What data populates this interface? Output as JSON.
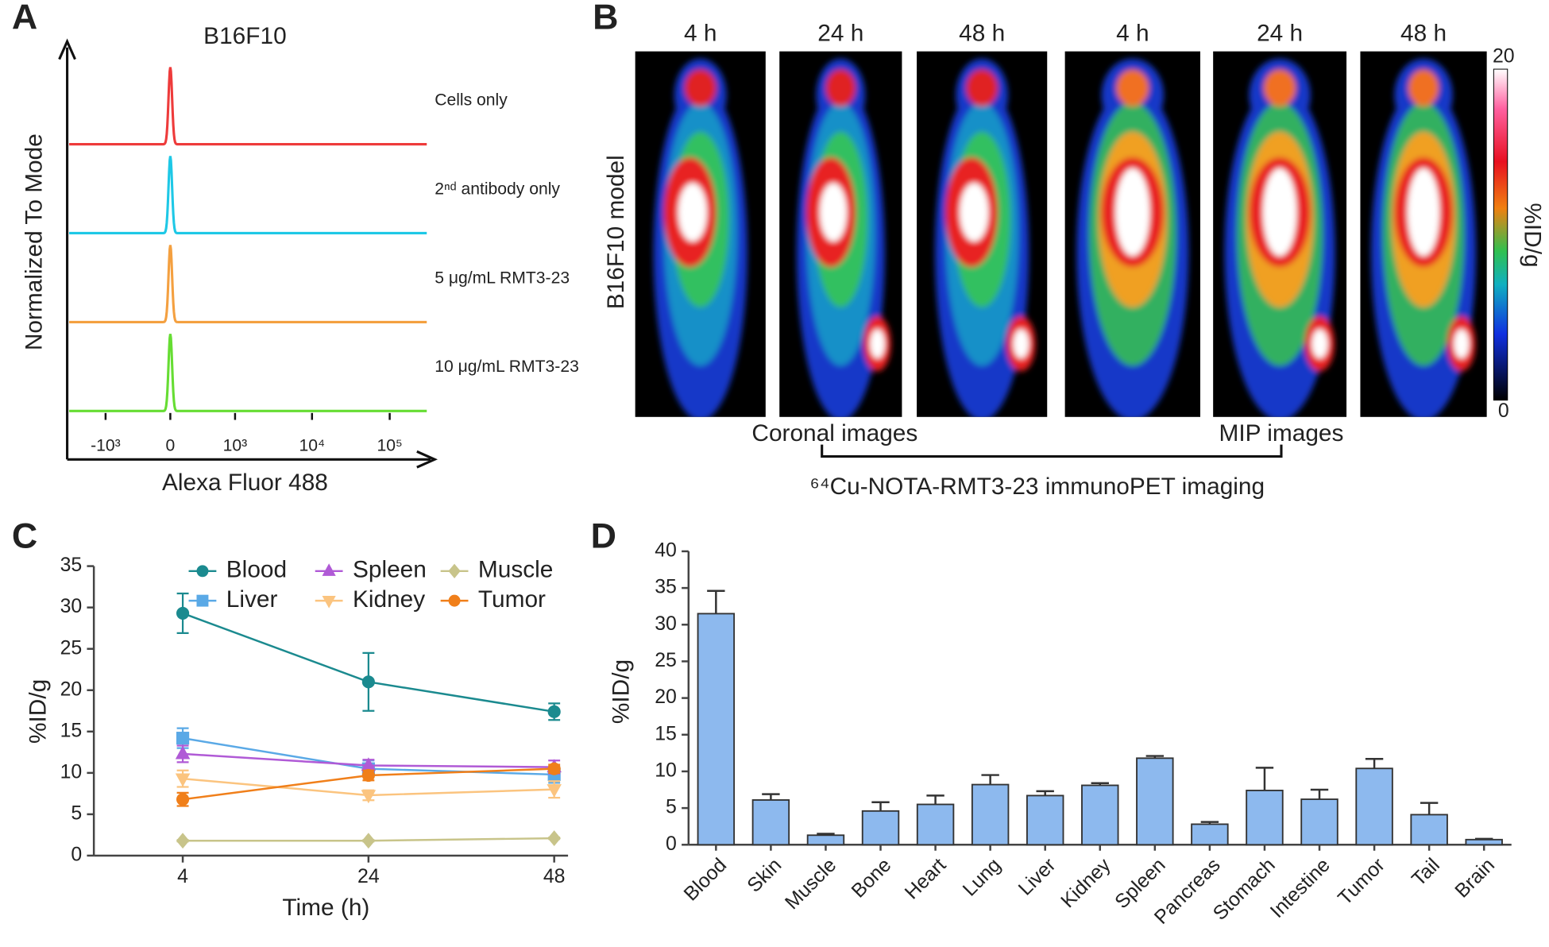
{
  "chart_data": [
    {
      "type": "flow_histogram",
      "panel": "A",
      "title": "B16F10",
      "xlabel": "Alexa Fluor 488",
      "ylabel": "Normalized To Mode",
      "xscale": "biexponential",
      "xlim": [
        -3000,
        300000
      ],
      "xticks": [
        {
          "value": -1000,
          "label": "-10³"
        },
        0,
        {
          "value": 1000,
          "label": "10³"
        },
        {
          "value": 10000,
          "label": "10⁴"
        },
        {
          "value": 100000,
          "label": "10⁵"
        }
      ],
      "series": [
        {
          "name": "Cells only",
          "color": "#ee3b3b"
        },
        {
          "name": "2ⁿᵈ antibody only",
          "color": "#1ec8e6"
        },
        {
          "name": "5 μg/mL RMT3-23",
          "color": "#f4a040"
        },
        {
          "name": "10 μg/mL RMT3-23",
          "color": "#66dd33"
        }
      ]
    },
    {
      "type": "pet_images",
      "panel": "B",
      "row_label": "B16F10 model",
      "columns": [
        "4 h",
        "24 h",
        "48 h",
        "4 h",
        "24 h",
        "48 h"
      ],
      "groups": [
        "Coronal images",
        "MIP images"
      ],
      "caption": "⁶⁴Cu-NOTA-RMT3-23 immunoPET imaging",
      "colorbar": {
        "label": "%ID/g",
        "lim": [
          0,
          20
        ],
        "ticks": [
          0,
          20
        ]
      }
    },
    {
      "type": "line",
      "panel": "C",
      "xlabel": "Time (h)",
      "ylabel": "%ID/g",
      "categories": [
        "4",
        "24",
        "48"
      ],
      "ylim": [
        0,
        35
      ],
      "yticks": [
        0,
        5,
        10,
        15,
        20,
        25,
        30,
        35
      ],
      "legend": "top",
      "series": [
        {
          "name": "Blood",
          "color": "#1b8a8f",
          "marker": "circle",
          "values": [
            29.3,
            21.0,
            17.4
          ],
          "errors": [
            2.4,
            3.5,
            1.0
          ]
        },
        {
          "name": "Liver",
          "color": "#5aa9e6",
          "marker": "square",
          "values": [
            14.2,
            10.5,
            9.8
          ],
          "errors": [
            1.2,
            1.0,
            1.0
          ]
        },
        {
          "name": "Spleen",
          "color": "#b05ad6",
          "marker": "triangle-up",
          "values": [
            12.3,
            10.9,
            10.7
          ],
          "errors": [
            1.0,
            0.7,
            0.8
          ]
        },
        {
          "name": "Kidney",
          "color": "#fbc47f",
          "marker": "triangle-down",
          "values": [
            9.3,
            7.3,
            8.0
          ],
          "errors": [
            1.0,
            0.6,
            1.0
          ]
        },
        {
          "name": "Muscle",
          "color": "#c8c48a",
          "marker": "diamond",
          "values": [
            1.8,
            1.8,
            2.1
          ],
          "errors": [
            0.1,
            0.1,
            0.1
          ]
        },
        {
          "name": "Tumor",
          "color": "#f07f1a",
          "marker": "circle",
          "values": [
            6.8,
            9.7,
            10.5
          ],
          "errors": [
            0.8,
            0.6,
            0.5
          ]
        }
      ]
    },
    {
      "type": "bar",
      "panel": "D",
      "ylabel": "%ID/g",
      "categories": [
        "Blood",
        "Skin",
        "Muscle",
        "Bone",
        "Heart",
        "Lung",
        "Liver",
        "Kidney",
        "Spleen",
        "Pancreas",
        "Stomach",
        "Intestine",
        "Tumor",
        "Tail",
        "Brain"
      ],
      "values": [
        31.5,
        6.1,
        1.3,
        4.6,
        5.5,
        8.2,
        6.7,
        8.1,
        11.8,
        2.8,
        7.4,
        6.2,
        10.4,
        4.1,
        0.7
      ],
      "errors": [
        3.1,
        0.8,
        0.2,
        1.2,
        1.2,
        1.3,
        0.6,
        0.3,
        0.3,
        0.3,
        3.1,
        1.3,
        1.3,
        1.6,
        0.1
      ],
      "color": "#8db9ee",
      "ylim": [
        0,
        40
      ],
      "yticks": [
        0,
        5,
        10,
        15,
        20,
        25,
        30,
        35,
        40
      ]
    }
  ]
}
